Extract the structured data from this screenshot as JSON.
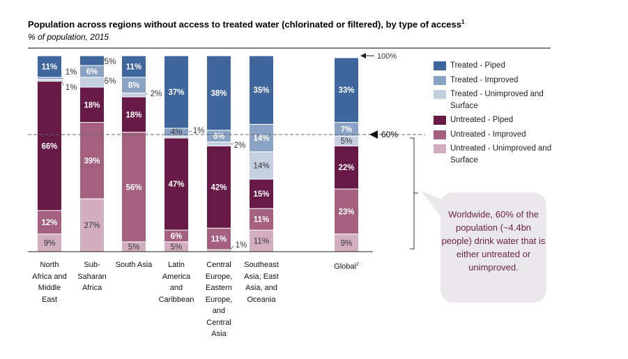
{
  "title": "Population across regions without access to treated water (chlorinated or filtered), by type of access",
  "title_footnote": "1",
  "subtitle": "% of population, 2015",
  "marker_100": "100%",
  "marker_60": "60%",
  "callout": "Worldwide, 60% of the population (~4.4bn people) drink water that is either untreated or unimproved.",
  "colors": {
    "treated_piped": "#3f679e",
    "treated_improved": "#8aa3c4",
    "treated_unimproved": "#c4cfe0",
    "untreated_piped": "#661a45",
    "untreated_improved": "#a5607f",
    "untreated_unimproved": "#d3aebf"
  },
  "chart_data": {
    "type": "bar",
    "stacked": true,
    "ylim": [
      0,
      100
    ],
    "categories": [
      {
        "lines": [
          "North",
          "Africa and",
          "Middle",
          "East"
        ],
        "sup": ""
      },
      {
        "lines": [
          "Sub-",
          "Saharan",
          "Africa"
        ],
        "sup": ""
      },
      {
        "lines": [
          "South Asia"
        ],
        "sup": ""
      },
      {
        "lines": [
          "Latin",
          "America",
          "and",
          "Caribbean"
        ],
        "sup": ""
      },
      {
        "lines": [
          "Central",
          "Europe,",
          "Eastern",
          "Europe,",
          "and",
          "Central",
          "Asia"
        ],
        "sup": ""
      },
      {
        "lines": [
          "Southeast",
          "Asia, East",
          "Asia, and",
          "Oceania"
        ],
        "sup": ""
      },
      {
        "lines": [
          "Global"
        ],
        "sup": "2"
      }
    ],
    "series": [
      {
        "name": "Untreated - Unimproved and Surface",
        "color_key": "untreated_unimproved",
        "values": [
          9,
          27,
          5,
          5,
          1,
          11,
          9
        ],
        "labels": [
          "9%",
          "27%",
          "5%",
          "5%",
          "1%",
          "11%",
          "9%"
        ]
      },
      {
        "name": "Untreated - Improved",
        "color_key": "untreated_improved",
        "values": [
          12,
          39,
          56,
          6,
          11,
          11,
          23
        ],
        "labels": [
          "12%",
          "39%",
          "56%",
          "6%",
          "11%",
          "11%",
          "23%"
        ]
      },
      {
        "name": "Untreated - Piped",
        "color_key": "untreated_piped",
        "values": [
          66,
          18,
          18,
          47,
          42,
          15,
          22
        ],
        "labels": [
          "66%",
          "18%",
          "18%",
          "47%",
          "42%",
          "15%",
          "22%"
        ]
      },
      {
        "name": "Treated - Unimproved and Surface",
        "color_key": "treated_unimproved",
        "values": [
          1,
          5,
          2,
          1,
          2,
          14,
          5
        ],
        "labels": [
          "1%",
          "5%",
          "2%",
          "1%",
          "2%",
          "14%",
          "5%"
        ]
      },
      {
        "name": "Treated - Improved",
        "color_key": "treated_improved",
        "values": [
          1,
          6,
          8,
          4,
          6,
          14,
          7
        ],
        "labels": [
          "1%",
          "6%",
          "8%",
          "4%",
          "6%",
          "14%",
          "7%"
        ]
      },
      {
        "name": "Treated - Piped",
        "color_key": "treated_piped",
        "values": [
          11,
          5,
          11,
          37,
          38,
          35,
          33
        ],
        "labels": [
          "11%",
          "5%",
          "11%",
          "37%",
          "38%",
          "35%",
          "33%"
        ]
      }
    ],
    "legend": [
      {
        "name": "Treated - Piped",
        "color_key": "treated_piped"
      },
      {
        "name": "Treated - Improved",
        "color_key": "treated_improved"
      },
      {
        "name": "Treated - Unimproved and Surface",
        "color_key": "treated_unimproved"
      },
      {
        "name": "Untreated - Piped",
        "color_key": "untreated_piped"
      },
      {
        "name": "Untreated - Improved",
        "color_key": "untreated_improved"
      },
      {
        "name": "Untreated - Unimproved and Surface",
        "color_key": "untreated_unimproved"
      }
    ],
    "reference_line": 60,
    "legend_position": "right",
    "grid": false
  }
}
